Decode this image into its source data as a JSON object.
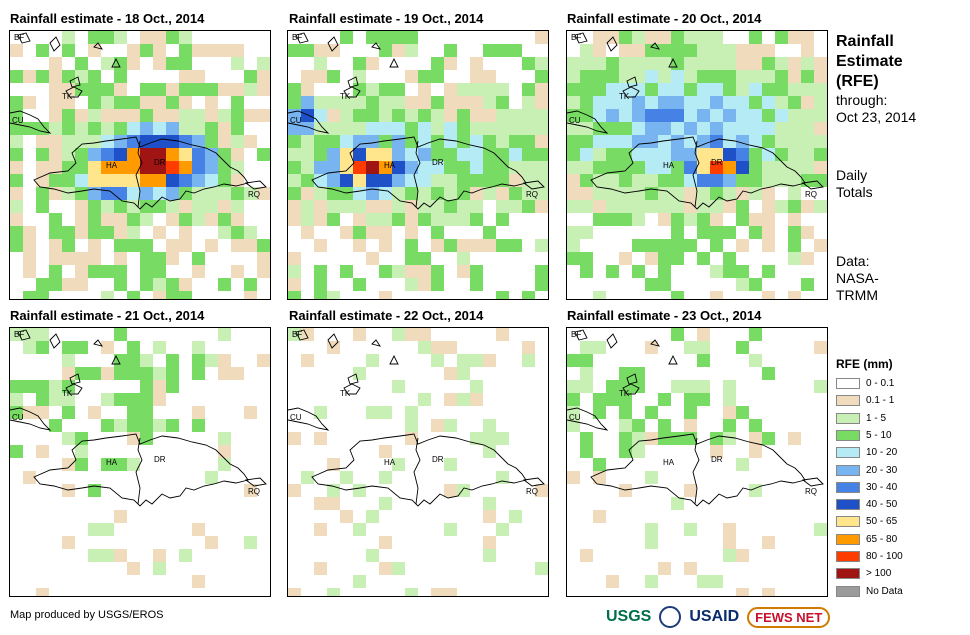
{
  "panels": [
    {
      "title": "Rainfall estimate - 18 Oct., 2014",
      "seed": 18,
      "profile": "heavy"
    },
    {
      "title": "Rainfall estimate - 19 Oct., 2014",
      "seed": 19,
      "profile": "west"
    },
    {
      "title": "Rainfall estimate - 20 Oct., 2014",
      "seed": 20,
      "profile": "medium"
    },
    {
      "title": "Rainfall estimate - 21 Oct., 2014",
      "seed": 21,
      "profile": "light"
    },
    {
      "title": "Rainfall estimate - 22 Oct., 2014",
      "seed": 22,
      "profile": "vlight"
    },
    {
      "title": "Rainfall estimate - 23 Oct., 2014",
      "seed": 23,
      "profile": "light"
    }
  ],
  "map_labels": {
    "bf": "BF",
    "tk": "TK",
    "cu": "CU",
    "ha": "HA",
    "dr": "DR",
    "rq": "RQ"
  },
  "side": {
    "title_line1": "Rainfall",
    "title_line2": "Estimate",
    "title_line3": "(RFE)",
    "through": "through:",
    "date": "Oct 23, 2014",
    "daily1": "Daily",
    "daily2": "Totals",
    "data1": "Data:",
    "data2": "NASA-",
    "data3": "TRMM"
  },
  "legend": {
    "title": "RFE (mm)",
    "items": [
      {
        "label": "0 - 0.1",
        "color": "#ffffff"
      },
      {
        "label": "0.1 - 1",
        "color": "#f0dcbc"
      },
      {
        "label": "1 - 5",
        "color": "#c8f0b4"
      },
      {
        "label": "5 - 10",
        "color": "#78dc64"
      },
      {
        "label": "10 - 20",
        "color": "#b4ebf5"
      },
      {
        "label": "20 - 30",
        "color": "#78b4f0"
      },
      {
        "label": "30 - 40",
        "color": "#4682e6"
      },
      {
        "label": "40 - 50",
        "color": "#1e50c8"
      },
      {
        "label": "50 - 65",
        "color": "#ffe68c"
      },
      {
        "label": "65 - 80",
        "color": "#ff9b00"
      },
      {
        "label": "80 - 100",
        "color": "#ff3c00"
      },
      {
        "label": "> 100",
        "color": "#a01414"
      },
      {
        "label": "No Data",
        "color": "#9b9b9b"
      }
    ]
  },
  "footer": {
    "credit": "Map produced by USGS/EROS"
  },
  "logos": {
    "usgs": "USGS",
    "usaid": "USAID",
    "fews": "FEWS NET"
  }
}
